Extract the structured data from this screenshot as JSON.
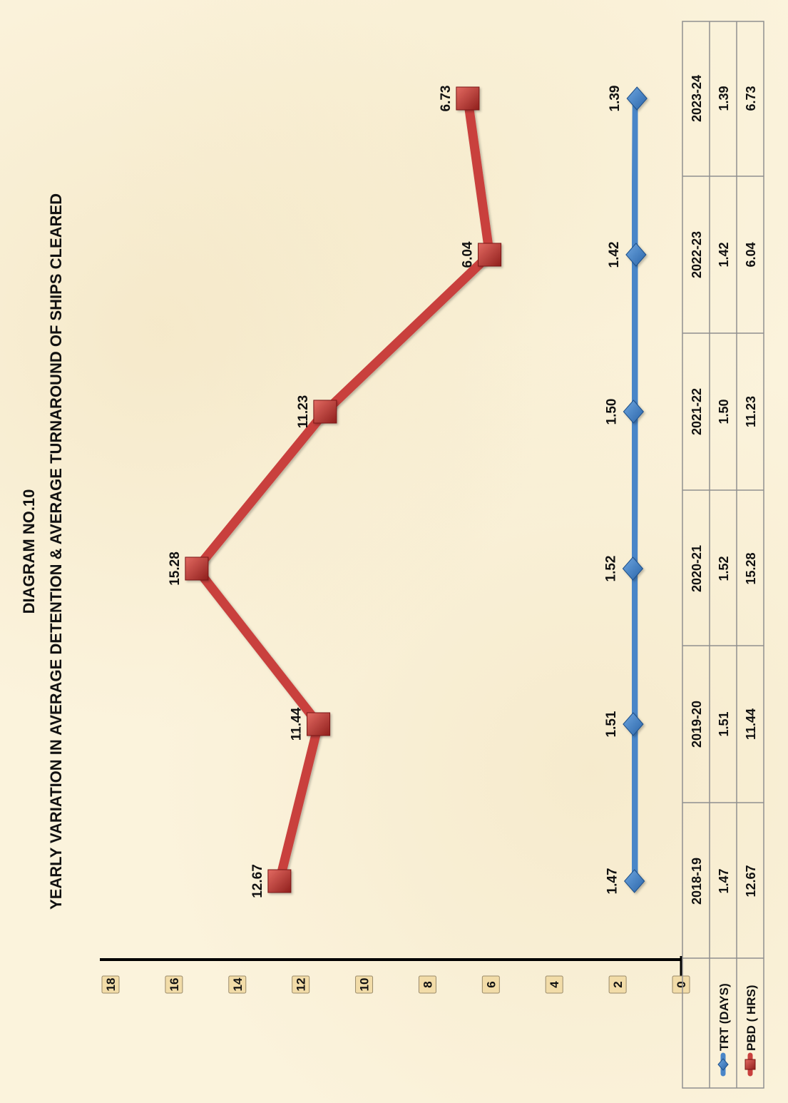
{
  "chart_data": {
    "type": "line",
    "orientation": "rotated 90° counter-clockwise (landscape chart printed on portrait page)",
    "title": "DIAGRAM NO.10",
    "subtitle": "YEARLY VARIATION IN AVERAGE DETENTION & AVERAGE TURNAROUND OF SHIPS CLEARED",
    "categories": [
      "2018-19",
      "2019-20",
      "2020-21",
      "2021-22",
      "2022-23",
      "2023-24"
    ],
    "series": [
      {
        "name": "TRT (DAYS)",
        "values": [
          1.47,
          1.51,
          1.52,
          1.5,
          1.42,
          1.39
        ],
        "labels": [
          "1.47",
          "1.51",
          "1.52",
          "1.50",
          "1.42",
          "1.39"
        ],
        "color": "#4a86c8",
        "marker": "diamond"
      },
      {
        "name": "PBD ( HRS)",
        "values": [
          12.67,
          11.44,
          15.28,
          11.23,
          6.04,
          6.73
        ],
        "labels": [
          "12.67",
          "11.44",
          "15.28",
          "11.23",
          "6.04",
          "6.73"
        ],
        "color": "#c9403e",
        "marker": "square"
      }
    ],
    "ylim": [
      0,
      18
    ],
    "yticks": [
      "0",
      "2",
      "4",
      "6",
      "8",
      "10",
      "12",
      "14",
      "16",
      "18"
    ],
    "grid": false,
    "legend": "data-table",
    "data_table": true
  }
}
